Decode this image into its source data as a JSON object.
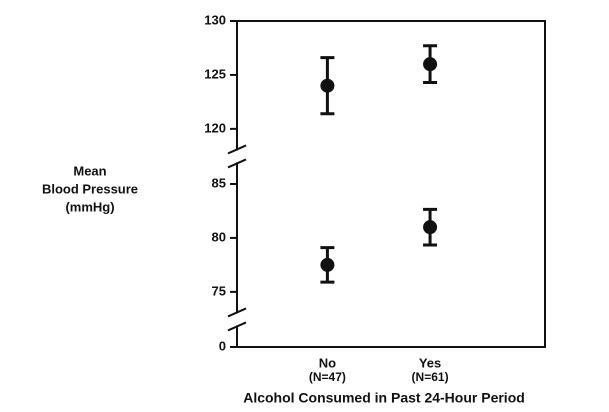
{
  "chart_data": {
    "type": "errorbar",
    "ylabel": [
      "Mean",
      "Blood Pressure",
      "(mmHg)"
    ],
    "xlabel": "Alcohol Consumed in Past 24-Hour Period",
    "categories": [
      "No",
      "Yes"
    ],
    "category_notes": [
      "(N=47)",
      "(N=61)"
    ],
    "y_segments": [
      {
        "ylim": [
          118,
          130
        ],
        "yticks": [
          120,
          125,
          130
        ]
      },
      {
        "ylim": [
          73,
          87
        ],
        "yticks": [
          75,
          80,
          85
        ]
      },
      {
        "ylim": [
          0,
          2
        ],
        "yticks": [
          0
        ]
      }
    ],
    "series": [
      {
        "color": "#111111",
        "values": [
          124,
          126
        ],
        "errors": [
          2.6,
          1.7
        ]
      },
      {
        "color": "#111111",
        "values": [
          77.5,
          81
        ],
        "errors": [
          1.6,
          1.65
        ]
      }
    ],
    "grid": false
  }
}
